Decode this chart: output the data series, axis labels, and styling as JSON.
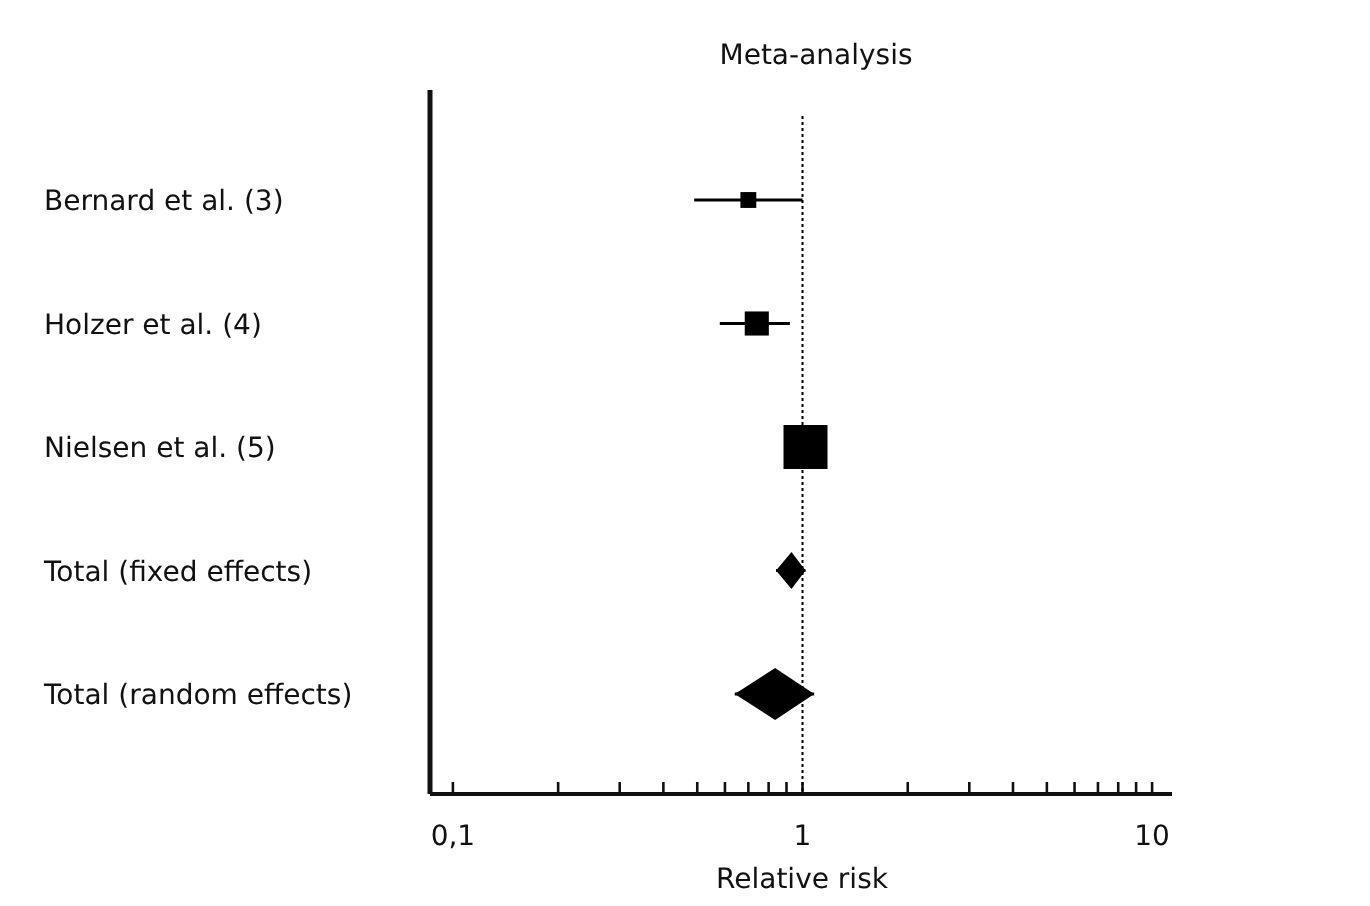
{
  "chart_data": {
    "type": "scatter",
    "orientation": "horizontal",
    "title": "Meta-analysis",
    "xlabel": "Relative risk",
    "log": "x",
    "categories": [
      "Bernard et al. (3)",
      "Holzer et al. (4)",
      "Nielsen et al. (5)",
      "Total (fixed effects)",
      "Total (random effects)"
    ],
    "series": [
      {
        "marker": "square",
        "color": "#000000",
        "values": [
          0.7,
          0.74,
          1.02,
          null,
          null
        ],
        "sizes": [
          0.13,
          0.3,
          1,
          null,
          null
        ],
        "errors": [
          [
            0.49,
            1.0
          ],
          [
            0.58,
            0.92
          ],
          null,
          null,
          null
        ]
      },
      {
        "marker": "diamond",
        "color": "#000000",
        "values": [
          null,
          null,
          null,
          0.93,
          0.835
        ],
        "errors": [
          null,
          null,
          null,
          [
            0.84,
            1.02
          ],
          [
            0.64,
            1.08
          ]
        ]
      }
    ],
    "xlim": [
      0.086,
      11.4
    ],
    "xticks": [
      {
        "value": 0.1,
        "label": "0,1"
      },
      {
        "value": 0.2,
        "label": null
      },
      {
        "value": 0.3,
        "label": null
      },
      {
        "value": 0.4,
        "label": null
      },
      {
        "value": 0.5,
        "label": null
      },
      {
        "value": 0.6,
        "label": null
      },
      {
        "value": 0.7,
        "label": null
      },
      {
        "value": 0.8,
        "label": null
      },
      {
        "value": 0.9,
        "label": null
      },
      1,
      {
        "value": 2,
        "label": null
      },
      {
        "value": 3,
        "label": null
      },
      {
        "value": 4,
        "label": null
      },
      {
        "value": 5,
        "label": null
      },
      {
        "value": 6,
        "label": null
      },
      {
        "value": 7,
        "label": null
      },
      {
        "value": 8,
        "label": null
      },
      {
        "value": 9,
        "label": null
      },
      10
    ],
    "ref_lines": [
      {
        "axis": "x",
        "value": 1,
        "line_style": "dotted",
        "color": "#000000"
      }
    ],
    "grid": false
  }
}
